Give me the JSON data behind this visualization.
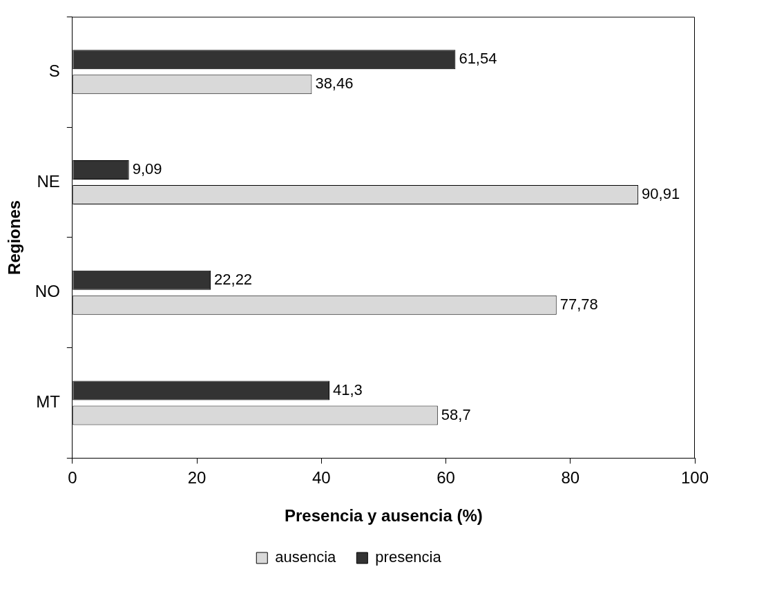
{
  "chart_data": {
    "type": "bar",
    "orientation": "horizontal",
    "categories": [
      "S",
      "NE",
      "NO",
      "MT"
    ],
    "series": [
      {
        "name": "ausencia",
        "color": "#d9d9d9",
        "values": [
          38.46,
          90.91,
          77.78,
          58.7
        ],
        "value_labels": [
          "38,46",
          "90,91",
          "77,78",
          "58,7"
        ]
      },
      {
        "name": "presencia",
        "color": "#333333",
        "values": [
          61.54,
          9.09,
          22.22,
          41.3
        ],
        "value_labels": [
          "61,54",
          "9,09",
          "22,22",
          "41,3"
        ]
      }
    ],
    "xlabel": "Presencia y ausencia (%)",
    "ylabel": "Regiones",
    "xlim": [
      0,
      100
    ],
    "xticks": [
      0,
      20,
      40,
      60,
      80,
      100
    ],
    "grid": false,
    "legend": "bottom"
  }
}
